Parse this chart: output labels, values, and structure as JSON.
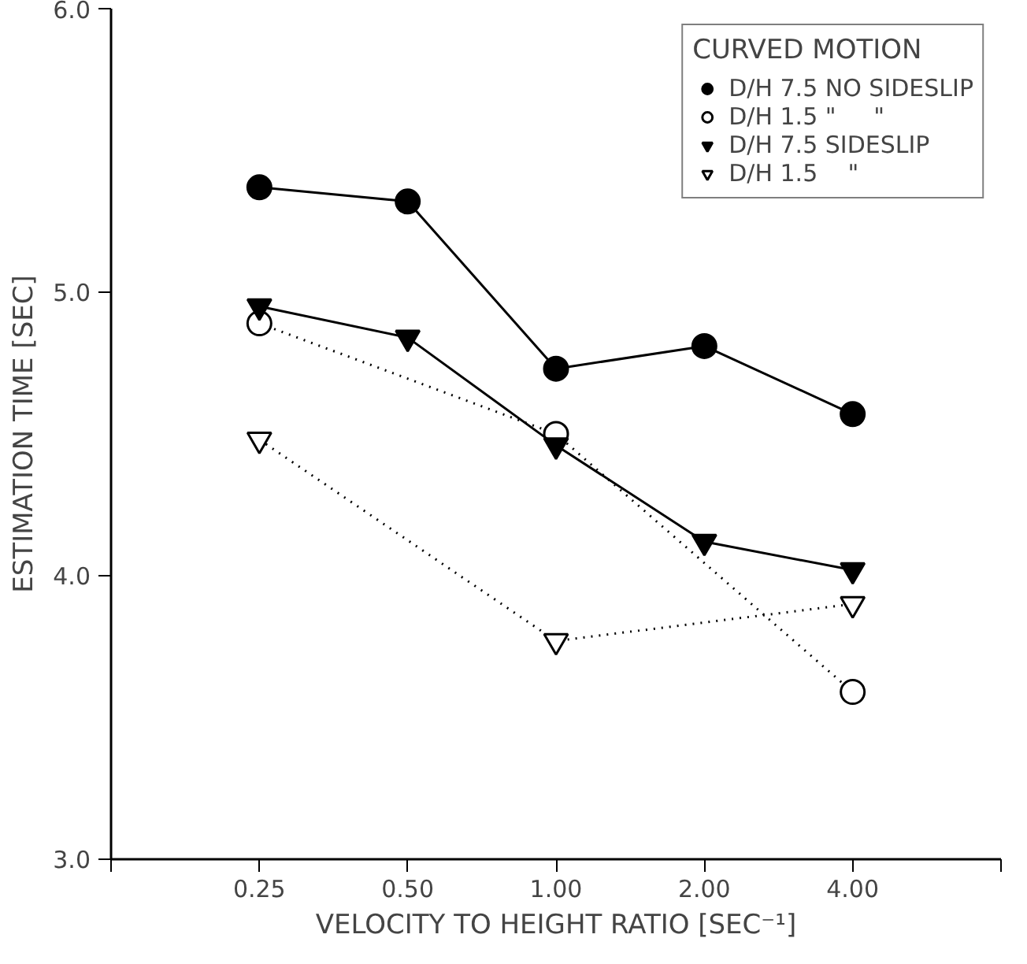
{
  "chart_data": {
    "type": "line",
    "xlabel": "VELOCITY TO HEIGHT RATIO [SEC⁻¹]",
    "ylabel": "ESTIMATION TIME [SEC]",
    "legend_title": "CURVED MOTION",
    "categories": [
      "0.25",
      "0.50",
      "1.00",
      "2.00",
      "4.00"
    ],
    "ylim": [
      3.0,
      6.0
    ],
    "yticks": [
      {
        "value": 3,
        "label": "3.0"
      },
      {
        "value": 4,
        "label": "4.0"
      },
      {
        "value": 5,
        "label": "5.0"
      },
      {
        "value": 6,
        "label": "6.0"
      }
    ],
    "grid": false,
    "legend": "top right",
    "series": [
      {
        "name": "D/H 7.5 NO SIDESLIP",
        "color": "#000000",
        "marker": "circle",
        "line_style": "solid",
        "values": [
          5.37,
          5.32,
          4.73,
          4.81,
          4.57
        ]
      },
      {
        "name": "D/H 1.5 \"     \"",
        "color": "#000000",
        "marker": "circle",
        "line_style": "dotted",
        "values": [
          4.89,
          null,
          4.5,
          null,
          3.59
        ]
      },
      {
        "name": "D/H 7.5 SIDESLIP",
        "color": "#000000",
        "marker": "triangle",
        "line_style": "solid",
        "values": [
          4.95,
          4.84,
          4.46,
          4.12,
          4.02
        ]
      },
      {
        "name": "D/H 1.5    \"",
        "color": "#000000",
        "marker": "triangle",
        "line_style": "dotted",
        "values": [
          4.48,
          null,
          3.77,
          null,
          3.9
        ]
      }
    ]
  }
}
